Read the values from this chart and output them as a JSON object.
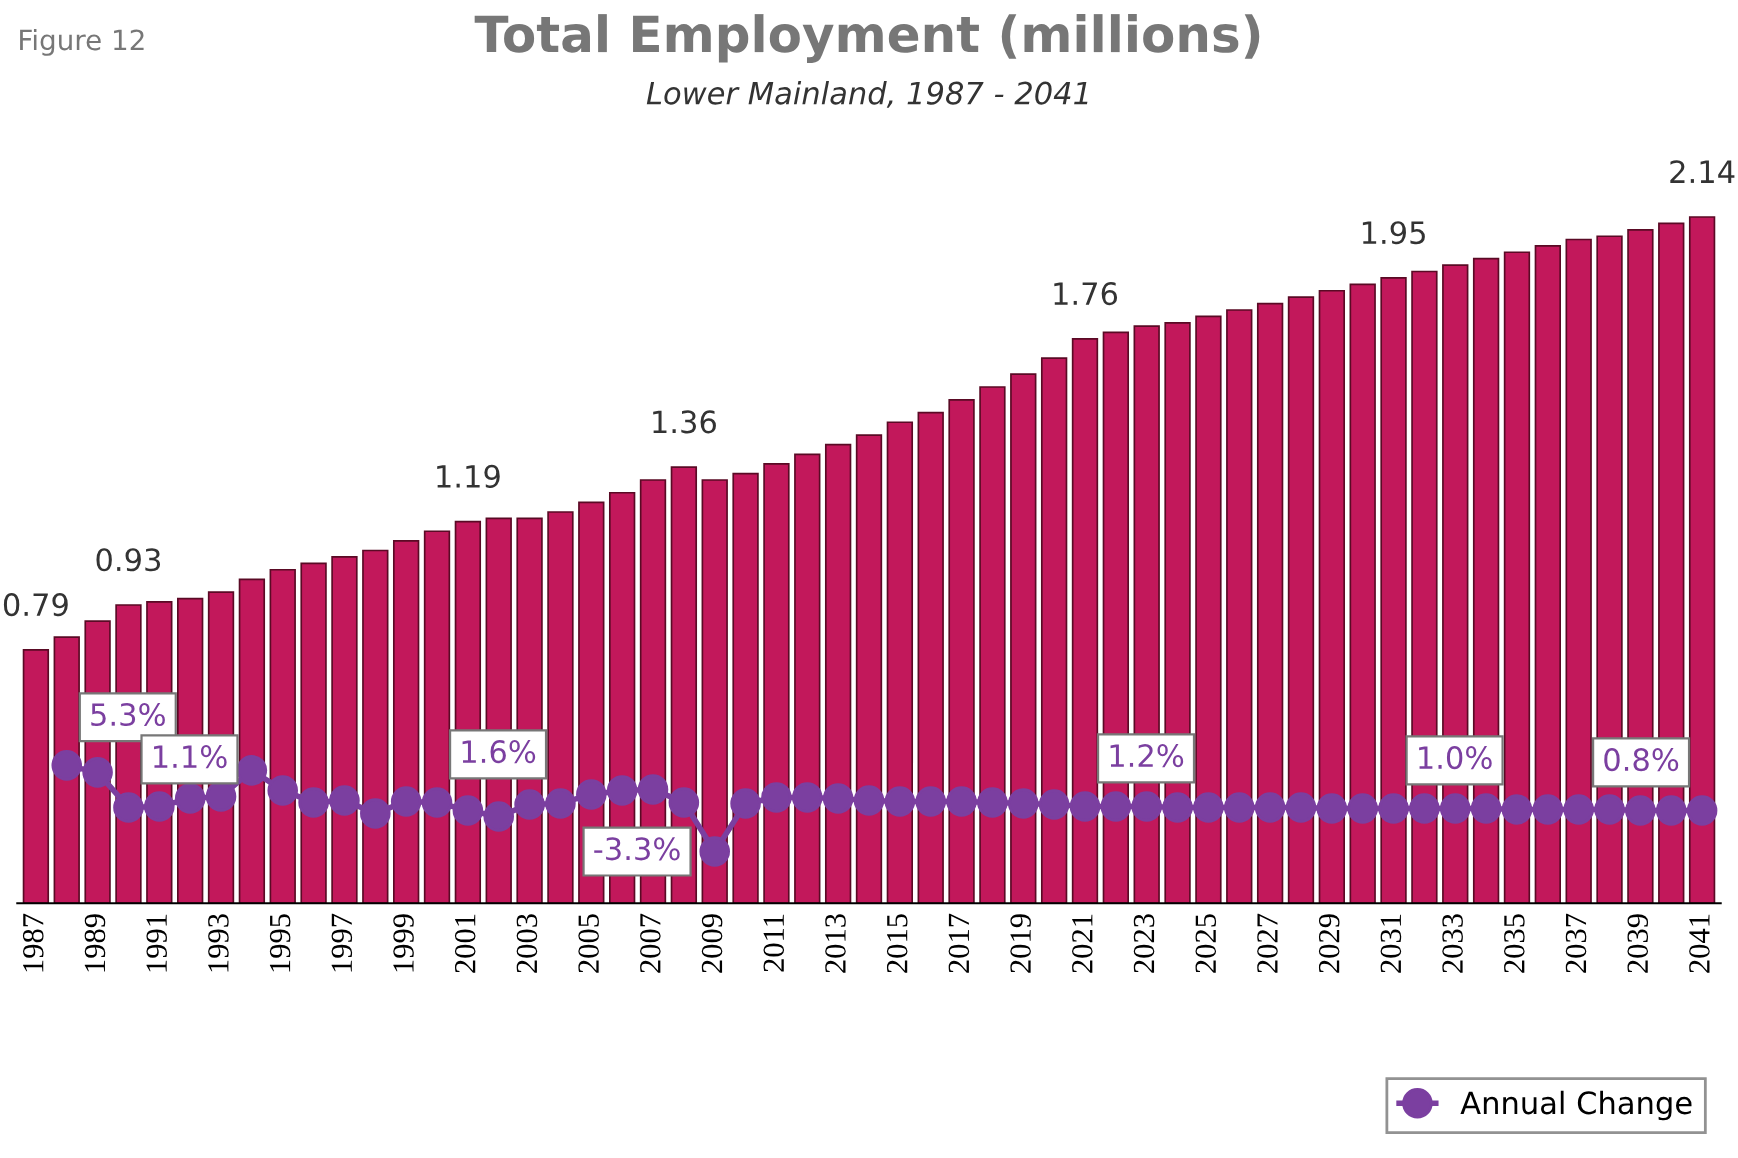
{
  "chart_data": {
    "type": "bar",
    "title": "Total Employment (millions)",
    "subtitle": "Lower Mainland, 1987 - 2041",
    "annotations": [
      "Figure 12"
    ],
    "categories": [
      "1987",
      null,
      "1989",
      null,
      "1991",
      null,
      "1993",
      null,
      "1995",
      null,
      "1997",
      null,
      "1999",
      null,
      "2001",
      null,
      "2003",
      null,
      "2005",
      null,
      "2007",
      null,
      "2009",
      null,
      "2011",
      null,
      "2013",
      null,
      "2015",
      null,
      "2017",
      null,
      "2019",
      null,
      "2021",
      null,
      "2023",
      null,
      "2025",
      null,
      "2027",
      null,
      "2029",
      null,
      "2031",
      null,
      "2033",
      null,
      "2035",
      null,
      "2037",
      null,
      "2039",
      null,
      "2041"
    ],
    "series": [
      {
        "color": "#c2185b",
        "values": [
          0.79,
          0.83,
          0.88,
          0.93,
          0.94,
          0.95,
          0.97,
          1.01,
          1.04,
          1.06,
          1.08,
          1.1,
          1.13,
          1.16,
          1.19,
          1.2,
          1.2,
          1.22,
          1.25,
          1.28,
          1.32,
          1.36,
          1.32,
          1.34,
          1.37,
          1.4,
          1.43,
          1.46,
          1.5,
          1.53,
          1.57,
          1.61,
          1.65,
          1.7,
          1.76,
          1.78,
          1.8,
          1.81,
          1.83,
          1.85,
          1.87,
          1.89,
          1.91,
          1.93,
          1.95,
          1.97,
          1.99,
          2.01,
          2.03,
          2.05,
          2.07,
          2.08,
          2.1,
          2.12,
          2.14
        ],
        "value_labels": [
          "0.79",
          null,
          null,
          "0.93",
          null,
          null,
          null,
          null,
          null,
          null,
          null,
          null,
          null,
          null,
          "1.19",
          null,
          null,
          null,
          null,
          null,
          null,
          "1.36",
          null,
          null,
          null,
          null,
          null,
          null,
          null,
          null,
          null,
          null,
          null,
          null,
          "1.76",
          null,
          null,
          null,
          null,
          null,
          null,
          null,
          null,
          null,
          "1.95",
          null,
          null,
          null,
          null,
          null,
          null,
          null,
          null,
          null,
          "2.14"
        ]
      },
      {
        "type": "line",
        "name": "Annual Change",
        "axis": "y2",
        "color": "#7b3fa0",
        "marker": "circle",
        "values": [
          null,
          5.3,
          4.6,
          1.1,
          1.2,
          2.0,
          2.2,
          4.8,
          2.8,
          1.6,
          1.8,
          0.5,
          1.7,
          1.6,
          0.8,
          0.2,
          1.4,
          1.5,
          2.4,
          2.8,
          2.9,
          1.6,
          -3.3,
          1.5,
          2.1,
          2.1,
          2.0,
          1.8,
          1.7,
          1.7,
          1.7,
          1.6,
          1.5,
          1.4,
          1.2,
          1.2,
          1.2,
          1.1,
          1.1,
          1.1,
          1.1,
          1.1,
          1.0,
          1.0,
          1.0,
          1.0,
          1.0,
          1.0,
          0.9,
          0.9,
          0.9,
          0.9,
          0.8,
          0.8,
          0.8
        ],
        "value_labels": [
          null,
          "5.3%",
          null,
          "1.1%",
          null,
          null,
          null,
          null,
          null,
          null,
          null,
          null,
          null,
          "1.6%",
          null,
          null,
          null,
          null,
          null,
          null,
          null,
          null,
          "-3.3%",
          null,
          null,
          null,
          null,
          null,
          null,
          null,
          null,
          null,
          null,
          null,
          "1.2%",
          null,
          null,
          null,
          null,
          null,
          null,
          null,
          null,
          null,
          "1.0%",
          null,
          null,
          null,
          null,
          null,
          null,
          null,
          null,
          null,
          "0.8%"
        ]
      }
    ],
    "tick_labels": "x",
    "legend": "bottom right",
    "grid": false
  }
}
